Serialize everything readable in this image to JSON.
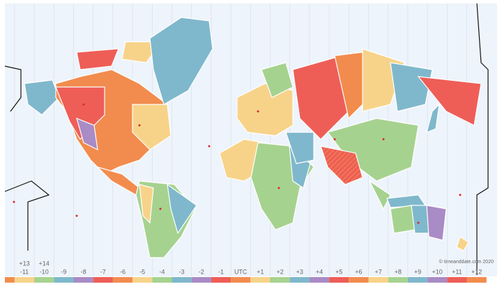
{
  "map": {
    "copyright": "© timeanddate.com 2020",
    "zones": [
      {
        "label": "-11",
        "alt": "+13",
        "color": "#f7d38a"
      },
      {
        "label": "-10",
        "alt": "+14",
        "color": "#a6d28f"
      },
      {
        "label": "-9",
        "color": "#7fb8cc"
      },
      {
        "label": "-8",
        "color": "#a98bc6"
      },
      {
        "label": "-7",
        "color": "#ee5e57"
      },
      {
        "label": "-6",
        "color": "#f28c4e"
      },
      {
        "label": "-5",
        "color": "#f7d38a"
      },
      {
        "label": "-4",
        "color": "#a6d28f"
      },
      {
        "label": "-3",
        "color": "#7fb8cc"
      },
      {
        "label": "-2",
        "color": "#a98bc6"
      },
      {
        "label": "-1",
        "color": "#ee5e57"
      },
      {
        "label": "UTC",
        "color": "#f28c4e"
      },
      {
        "label": "+1",
        "color": "#f7d38a"
      },
      {
        "label": "+2",
        "color": "#a6d28f"
      },
      {
        "label": "+3",
        "color": "#7fb8cc"
      },
      {
        "label": "+4",
        "color": "#a98bc6"
      },
      {
        "label": "+5",
        "color": "#ee5e57"
      },
      {
        "label": "+6",
        "color": "#f28c4e"
      },
      {
        "label": "+7",
        "color": "#f7d38a"
      },
      {
        "label": "+8",
        "color": "#a6d28f"
      },
      {
        "label": "+9",
        "color": "#7fb8cc"
      },
      {
        "label": "+10",
        "color": "#a98bc6"
      },
      {
        "label": "+11",
        "color": "#ee5e57"
      },
      {
        "label": "+12",
        "color": "#f28c4e"
      }
    ]
  }
}
